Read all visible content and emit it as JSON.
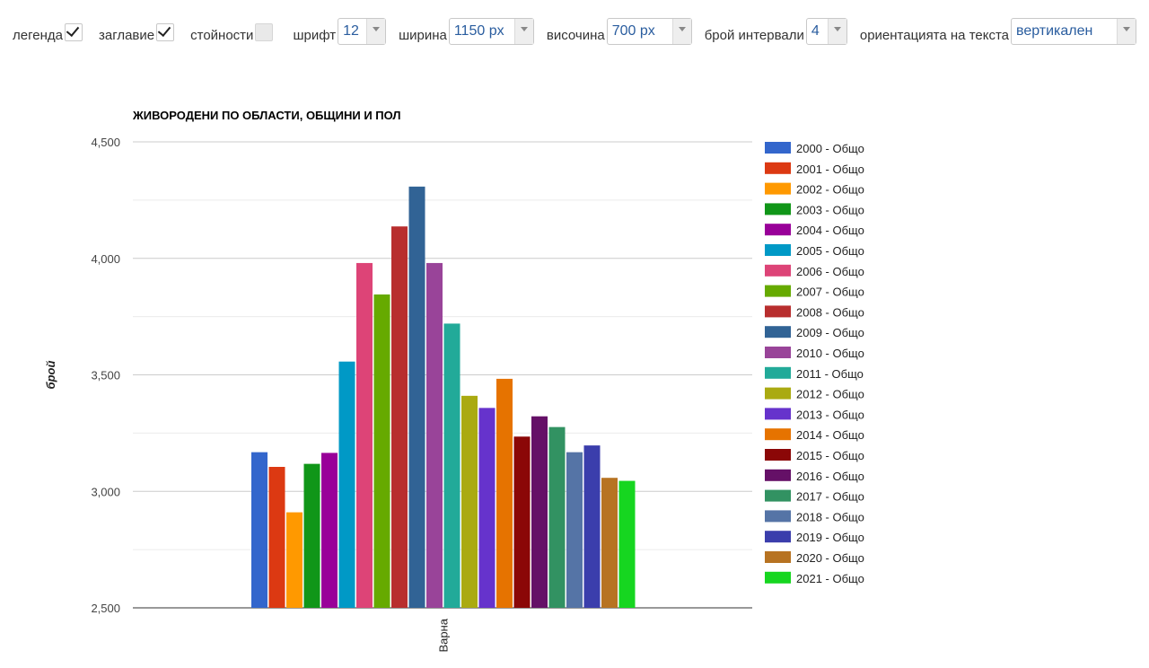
{
  "toolbar": {
    "legend_label": "легенда",
    "legend_checked": true,
    "title_label": "заглавие",
    "title_checked": true,
    "values_label": "стойности",
    "values_checked": false,
    "font_label": "шрифт",
    "font_value": "12",
    "width_label": "ширина",
    "width_value": "1150 px",
    "height_label": "височина",
    "height_value": "700 px",
    "intervals_label": "брой интервали",
    "intervals_value": "4",
    "orientation_label": "ориентацията на текста",
    "orientation_value": "вертикален"
  },
  "chart_data": {
    "type": "bar",
    "title": "ЖИВОРОДЕНИ ПО ОБЛАСТИ, ОБЩИНИ И ПОЛ",
    "ylabel": "брой",
    "xlabel": "",
    "categories": [
      "Варна"
    ],
    "ylim": [
      2500,
      4500
    ],
    "yticks": [
      2500,
      3000,
      3500,
      4000,
      4500
    ],
    "ytick_labels": [
      "2,500",
      "3,000",
      "3,500",
      "4,000",
      "4,500"
    ],
    "grid": true,
    "legend_position": "right",
    "series": [
      {
        "name": "2000 - Общо",
        "color": "#3366cc",
        "values": [
          3168
        ]
      },
      {
        "name": "2001 - Общо",
        "color": "#dc3912",
        "values": [
          3105
        ]
      },
      {
        "name": "2002 - Общо",
        "color": "#ff9900",
        "values": [
          2910
        ]
      },
      {
        "name": "2003 - Общо",
        "color": "#109618",
        "values": [
          3118
        ]
      },
      {
        "name": "2004 - Общо",
        "color": "#990099",
        "values": [
          3165
        ]
      },
      {
        "name": "2005 - Общо",
        "color": "#0099c6",
        "values": [
          3557
        ]
      },
      {
        "name": "2006 - Общо",
        "color": "#dd4477",
        "values": [
          3980
        ]
      },
      {
        "name": "2007 - Общо",
        "color": "#66aa00",
        "values": [
          3845
        ]
      },
      {
        "name": "2008 - Общо",
        "color": "#b82e2e",
        "values": [
          4137
        ]
      },
      {
        "name": "2009 - Общо",
        "color": "#316395",
        "values": [
          4308
        ]
      },
      {
        "name": "2010 - Общо",
        "color": "#994499",
        "values": [
          3980
        ]
      },
      {
        "name": "2011 - Общо",
        "color": "#22aa99",
        "values": [
          3720
        ]
      },
      {
        "name": "2012 - Общо",
        "color": "#aaaa11",
        "values": [
          3410
        ]
      },
      {
        "name": "2013 - Общо",
        "color": "#6633cc",
        "values": [
          3358
        ]
      },
      {
        "name": "2014 - Общо",
        "color": "#e67300",
        "values": [
          3483
        ]
      },
      {
        "name": "2015 - Общо",
        "color": "#8b0707",
        "values": [
          3235
        ]
      },
      {
        "name": "2016 - Общо",
        "color": "#651067",
        "values": [
          3322
        ]
      },
      {
        "name": "2017 - Общо",
        "color": "#329262",
        "values": [
          3276
        ]
      },
      {
        "name": "2018 - Общо",
        "color": "#5574a6",
        "values": [
          3168
        ]
      },
      {
        "name": "2019 - Общо",
        "color": "#3b3eac",
        "values": [
          3197
        ]
      },
      {
        "name": "2020 - Общо",
        "color": "#b77322",
        "values": [
          3058
        ]
      },
      {
        "name": "2021 - Общо",
        "color": "#16d620",
        "values": [
          3045
        ]
      }
    ]
  }
}
